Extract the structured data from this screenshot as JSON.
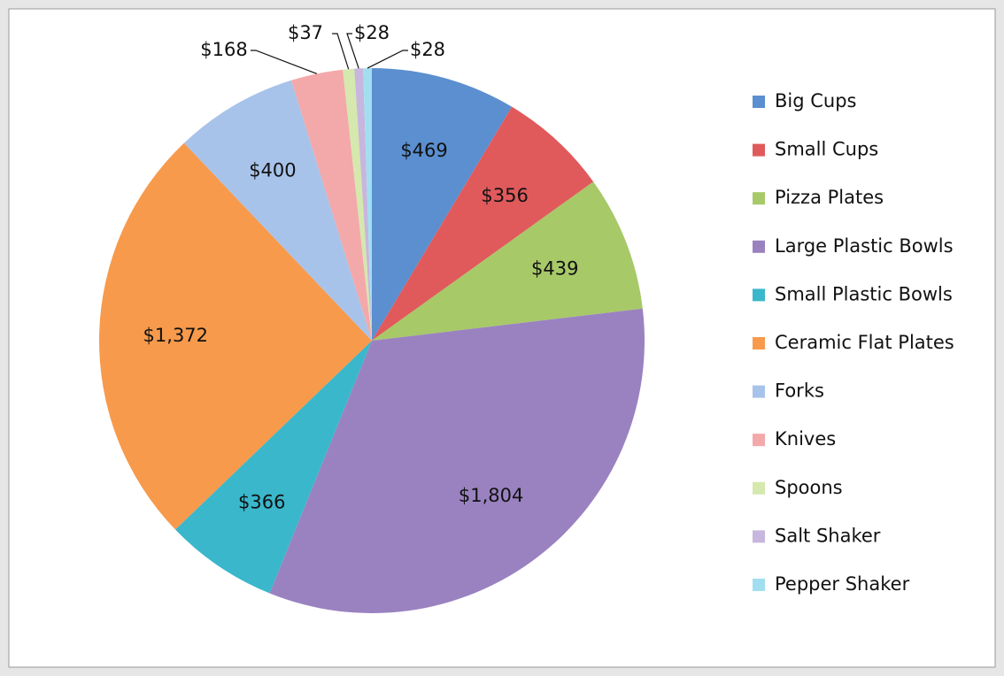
{
  "chart_data": {
    "type": "pie",
    "categories": [
      "Big Cups",
      "Small Cups",
      "Pizza Plates",
      "Large Plastic Bowls",
      "Small Plastic Bowls",
      "Ceramic Flat Plates",
      "Forks",
      "Knives",
      "Spoons",
      "Salt Shaker",
      "Pepper Shaker"
    ],
    "values": [
      469,
      356,
      439,
      1804,
      366,
      1372,
      400,
      168,
      37,
      28,
      28
    ],
    "value_labels": [
      "$469",
      "$356",
      "$439",
      "$1,804",
      "$366",
      "$1,372",
      "$400",
      "$168",
      "$37",
      "$28",
      "$28"
    ],
    "colors": [
      "#5b8fcf",
      "#e05a5c",
      "#a7c968",
      "#9a82c0",
      "#3ab7cb",
      "#f79a4c",
      "#a8c3ea",
      "#f3a8aa",
      "#d5e8ad",
      "#c7b6dd",
      "#a1dff0"
    ],
    "legend": "right"
  }
}
